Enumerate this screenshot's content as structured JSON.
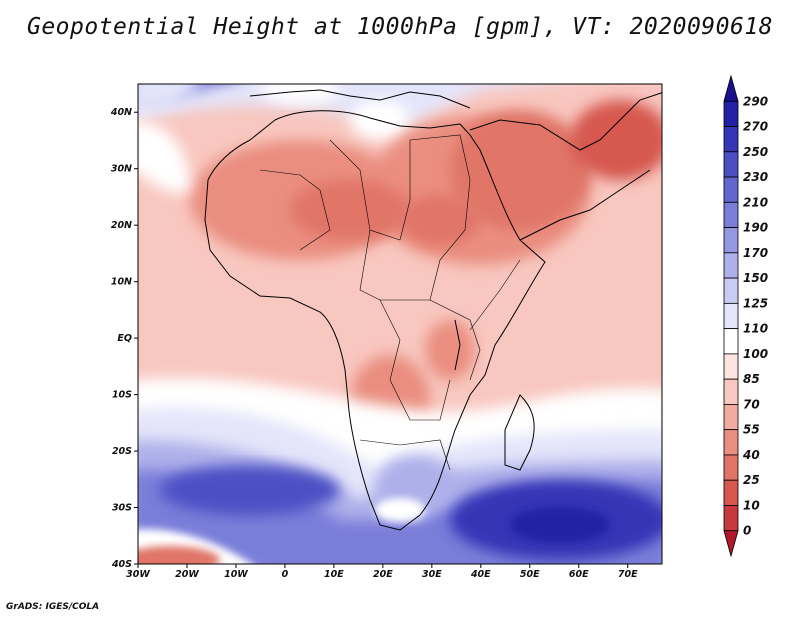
{
  "chart_data": {
    "type": "heatmap",
    "title": "Geopotential Height at 1000hPa [gpm], VT: 2020090618",
    "xlabel": "",
    "ylabel": "",
    "xlim": [
      -30,
      77
    ],
    "ylim": [
      -40,
      45
    ],
    "x_ticks": [
      "30W",
      "20W",
      "10W",
      "0",
      "10E",
      "20E",
      "30E",
      "40E",
      "50E",
      "60E",
      "70E"
    ],
    "y_ticks": [
      "40S",
      "30S",
      "20S",
      "10S",
      "EQ",
      "10N",
      "20N",
      "30N",
      "40N"
    ],
    "colorbar": {
      "levels": [
        "0",
        "10",
        "25",
        "40",
        "55",
        "70",
        "85",
        "100",
        "110",
        "125",
        "150",
        "170",
        "190",
        "210",
        "230",
        "250",
        "270",
        "290"
      ],
      "colors": [
        "#b2182b",
        "#c73a3c",
        "#d6584f",
        "#e07567",
        "#ea8e80",
        "#f2aba0",
        "#f8c7bf",
        "#fde4df",
        "#ffffff",
        "#e4e5fa",
        "#c9cbf2",
        "#aeb0ea",
        "#9497e2",
        "#7a7ed9",
        "#6266cf",
        "#4b4fc4",
        "#3436b6",
        "#2221a5",
        "#1a0f8f"
      ],
      "extends": "both"
    },
    "footer": "GrADS: IGES/COLA"
  }
}
